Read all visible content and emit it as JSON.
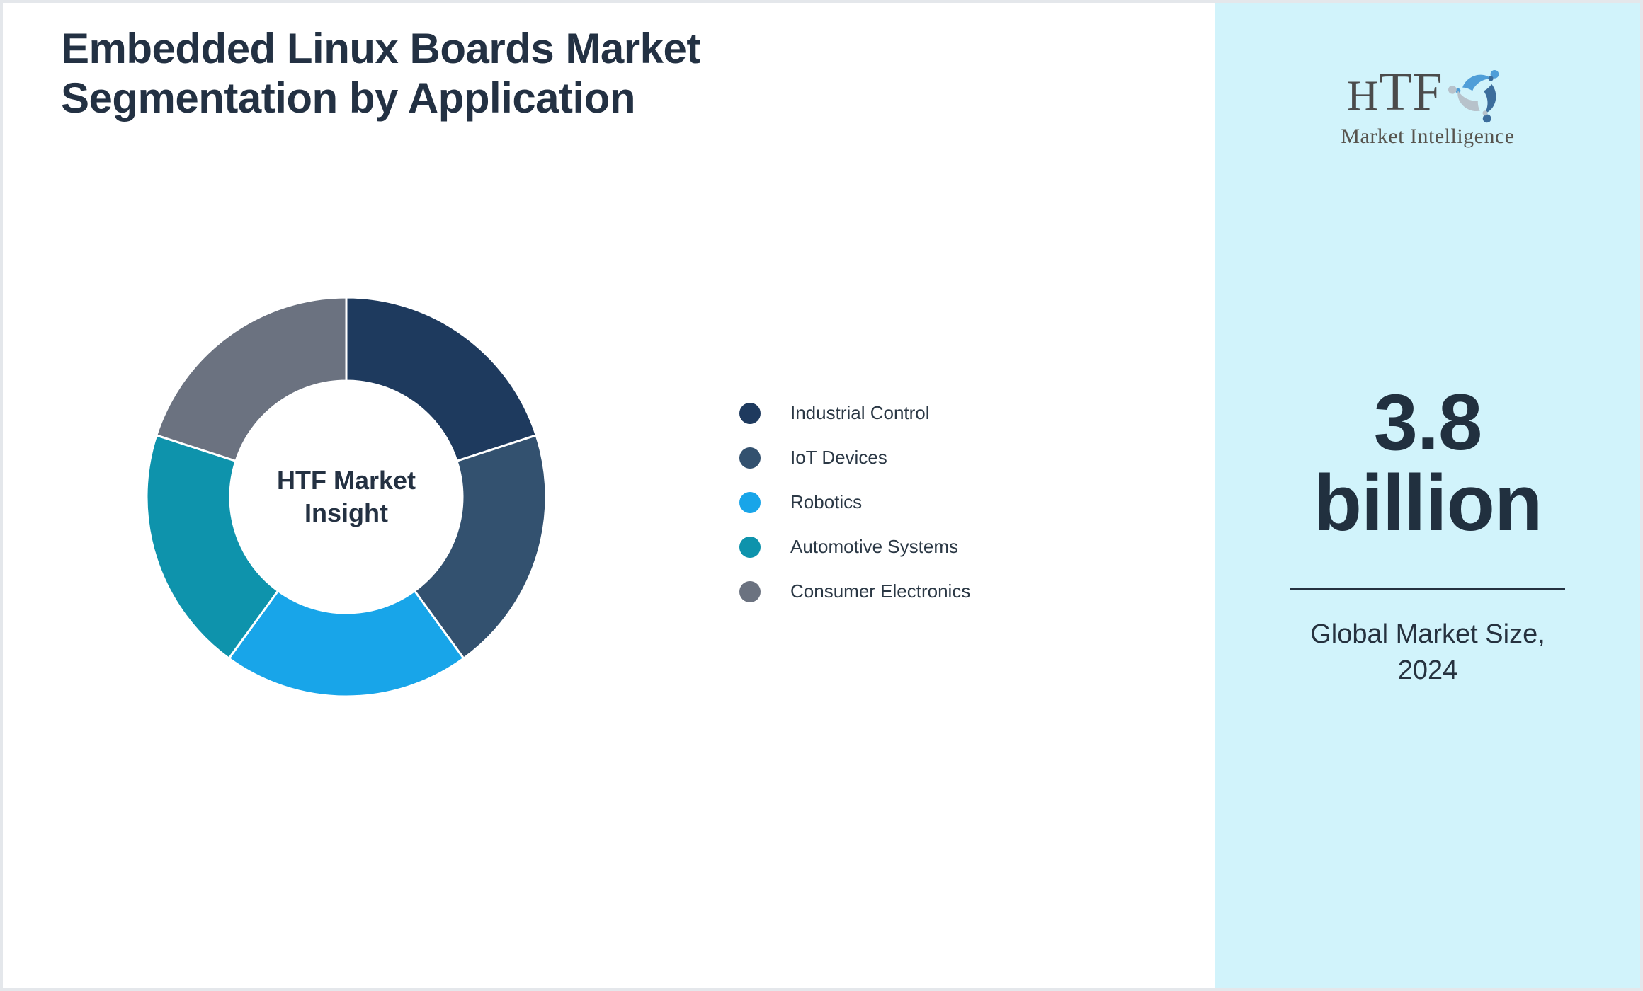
{
  "page": {
    "title_lines": [
      "Embedded Linux Boards Market",
      "Segmentation by Application"
    ]
  },
  "chart_data": {
    "type": "pie",
    "subtype": "donut",
    "title": "Embedded Linux Boards Market Segmentation by Application",
    "center_label_lines": [
      "HTF Market",
      "Insight"
    ],
    "start_angle_deg": 0,
    "direction": "clockwise",
    "inner_radius_ratio": 0.58,
    "legend_position": "right",
    "values_labeled_on_chart": false,
    "segments": [
      {
        "label": "Industrial Control",
        "value": 20,
        "color": "#1e3a5e"
      },
      {
        "label": "IoT Devices",
        "value": 20,
        "color": "#33516f"
      },
      {
        "label": "Robotics",
        "value": 20,
        "color": "#18a5e9"
      },
      {
        "label": "Automotive Systems",
        "value": 20,
        "color": "#0e93ac"
      },
      {
        "label": "Consumer Electronics",
        "value": 20,
        "color": "#6b7280"
      }
    ]
  },
  "sidebar": {
    "logo": {
      "text": "HTF",
      "subtext": "Market Intelligence"
    },
    "market_size_value": "3.8",
    "market_size_unit": "billion",
    "caption_lines": [
      "Global Market Size,",
      "2024"
    ]
  },
  "colors": {
    "sidebar_background": "#d1f3fb",
    "page_background": "#ffffff",
    "page_border": "#e4e7eb",
    "title_text": "#233143",
    "legend_text": "#2b3845",
    "donut_center_text": "#243142",
    "big_number_text": "#21303f",
    "divider": "#253140",
    "logo_text": "#4b4b4b",
    "logo_subtext": "#57544e",
    "logo_swirl_blue": "#4f9ed8",
    "logo_swirl_steel_blue": "#3c6d9c",
    "logo_swirl_gray": "#b7c2cb"
  }
}
